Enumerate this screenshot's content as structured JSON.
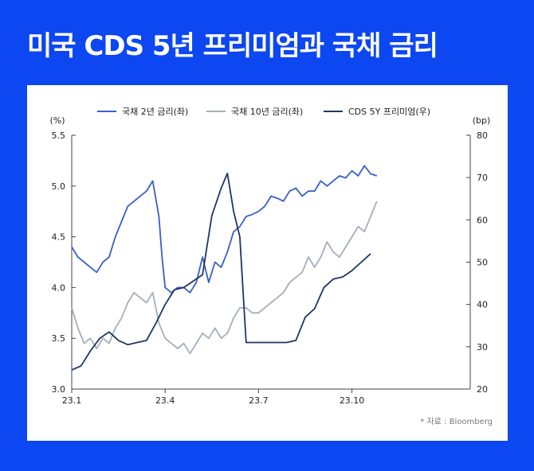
{
  "title": "미국 CDS 5년 프리미엄과 국채 금리",
  "source": "* 자료 : Bloomberg",
  "colors": {
    "background": "#0c47f2",
    "panel": "#ffffff",
    "axis": "#444444"
  },
  "chart_data": {
    "type": "line",
    "title": "미국 CDS 5년 프리미엄과 국채 금리",
    "x_ticks": [
      "23.1",
      "23.4",
      "23.7",
      "23.10"
    ],
    "x_range": [
      0,
      12.8
    ],
    "x_tick_positions": [
      0,
      3,
      6,
      9
    ],
    "left_axis": {
      "label": "(%)",
      "range": [
        3.0,
        5.5
      ],
      "ticks": [
        "3.0",
        "3.5",
        "4.0",
        "4.5",
        "5.0",
        "5.5"
      ]
    },
    "right_axis": {
      "label": "(bp)",
      "range": [
        20,
        80
      ],
      "ticks": [
        "20",
        "30",
        "40",
        "50",
        "60",
        "70",
        "80"
      ]
    },
    "series": [
      {
        "name": "국채 2년 금리(좌)",
        "axis": "left",
        "color": "#3a5fc8",
        "x": [
          0,
          0.2,
          0.4,
          0.6,
          0.8,
          1.0,
          1.2,
          1.4,
          1.6,
          1.8,
          2.0,
          2.2,
          2.4,
          2.6,
          2.8,
          2.9,
          3.0,
          3.2,
          3.4,
          3.6,
          3.8,
          4.0,
          4.2,
          4.4,
          4.6,
          4.8,
          5.0,
          5.2,
          5.4,
          5.6,
          5.8,
          6.0,
          6.2,
          6.4,
          6.6,
          6.8,
          7.0,
          7.2,
          7.4,
          7.6,
          7.8,
          8.0,
          8.2,
          8.4,
          8.6,
          8.8,
          9.0,
          9.2,
          9.4,
          9.6,
          9.8
        ],
        "values": [
          4.4,
          4.3,
          4.25,
          4.2,
          4.15,
          4.25,
          4.3,
          4.5,
          4.65,
          4.8,
          4.85,
          4.9,
          4.95,
          5.05,
          4.7,
          4.3,
          4.0,
          3.95,
          4.0,
          4.0,
          3.95,
          4.05,
          4.3,
          4.05,
          4.25,
          4.2,
          4.35,
          4.55,
          4.6,
          4.7,
          4.72,
          4.75,
          4.8,
          4.9,
          4.88,
          4.85,
          4.95,
          4.98,
          4.9,
          4.95,
          4.95,
          5.05,
          5.0,
          5.05,
          5.1,
          5.08,
          5.15,
          5.1,
          5.2,
          5.12,
          5.1
        ]
      },
      {
        "name": "국채 10년 금리(좌)",
        "axis": "left",
        "color": "#a6adbd",
        "x": [
          0,
          0.2,
          0.4,
          0.6,
          0.8,
          1.0,
          1.2,
          1.4,
          1.6,
          1.8,
          2.0,
          2.2,
          2.4,
          2.6,
          2.8,
          3.0,
          3.2,
          3.4,
          3.6,
          3.8,
          4.0,
          4.2,
          4.4,
          4.6,
          4.8,
          5.0,
          5.2,
          5.4,
          5.6,
          5.8,
          6.0,
          6.2,
          6.4,
          6.6,
          6.8,
          7.0,
          7.2,
          7.4,
          7.6,
          7.8,
          8.0,
          8.2,
          8.4,
          8.6,
          8.8,
          9.0,
          9.2,
          9.4,
          9.6,
          9.8
        ],
        "values": [
          3.8,
          3.6,
          3.45,
          3.5,
          3.4,
          3.5,
          3.45,
          3.6,
          3.7,
          3.85,
          3.95,
          3.9,
          3.85,
          3.95,
          3.65,
          3.5,
          3.45,
          3.4,
          3.45,
          3.35,
          3.45,
          3.55,
          3.5,
          3.6,
          3.5,
          3.55,
          3.7,
          3.8,
          3.8,
          3.75,
          3.75,
          3.8,
          3.85,
          3.9,
          3.95,
          4.05,
          4.1,
          4.15,
          4.3,
          4.2,
          4.3,
          4.45,
          4.35,
          4.3,
          4.4,
          4.5,
          4.6,
          4.55,
          4.7,
          4.85
        ]
      },
      {
        "name": "CDS 5Y 프리미엄(우)",
        "axis": "right",
        "color": "#1f3565",
        "x": [
          0,
          0.3,
          0.6,
          0.9,
          1.2,
          1.5,
          1.8,
          2.1,
          2.4,
          2.7,
          3.0,
          3.3,
          3.6,
          3.9,
          4.2,
          4.5,
          4.8,
          5.0,
          5.2,
          5.4,
          5.6,
          5.8,
          6.0,
          6.3,
          6.6,
          6.9,
          7.2,
          7.5,
          7.8,
          8.1,
          8.4,
          8.7,
          9.0,
          9.3,
          9.6
        ],
        "values": [
          24.5,
          25.5,
          29.0,
          32.0,
          33.5,
          31.5,
          30.5,
          31.0,
          31.5,
          35.5,
          40.0,
          43.5,
          44.0,
          45.5,
          47.0,
          61.0,
          67.5,
          71.0,
          62.0,
          56.0,
          31.0,
          31.0,
          31.0,
          31.0,
          31.0,
          31.0,
          31.5,
          37.0,
          39.0,
          44.0,
          46.0,
          46.5,
          48.0,
          50.0,
          52.0
        ]
      }
    ]
  }
}
